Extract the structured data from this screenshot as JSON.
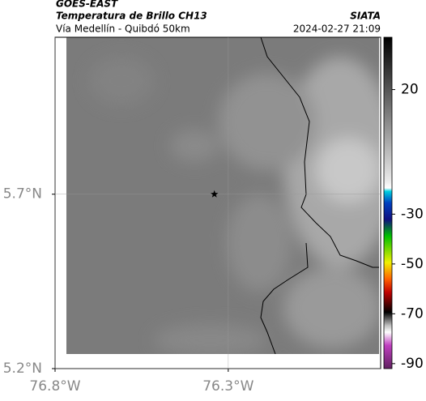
{
  "header": {
    "title": "GOES-EAST",
    "subtitle": "Temperatura de Brillo CH13",
    "source": "SIATA",
    "region": "Vía Medellín - Quibdó 50km",
    "datetime": "2024-02-27 21:09"
  },
  "map": {
    "xlim": [
      -76.8,
      -75.86
    ],
    "ylim": [
      5.2,
      6.15
    ],
    "xticks": [
      {
        "value": -76.8,
        "label": "76.8°W"
      },
      {
        "value": -76.3,
        "label": "76.3°W"
      }
    ],
    "yticks": [
      {
        "value": 5.7,
        "label": "5.7°N"
      },
      {
        "value": 5.2,
        "label": "5.2°N"
      }
    ],
    "marker": {
      "lon": -76.34,
      "lat": 5.7
    }
  },
  "colorbar": {
    "range": [
      -92,
      41
    ],
    "ticks": [
      20,
      -30,
      -50,
      -70,
      -90
    ]
  }
}
